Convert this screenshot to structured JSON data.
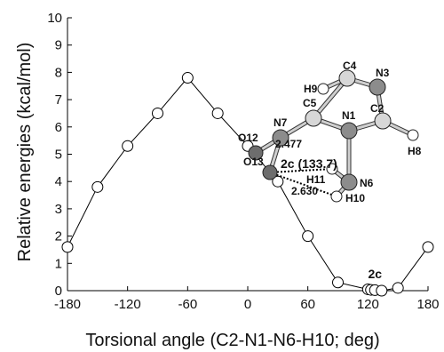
{
  "chart_data": {
    "type": "line",
    "xlabel": "Torsional angle (C2-N1-N6-H10; deg)",
    "ylabel": "Relative energies (kcal/mol)",
    "xlim": [
      -180,
      180
    ],
    "ylim": [
      0,
      10
    ],
    "x_ticks": [
      "-180",
      "-120",
      "-60",
      "0",
      "60",
      "120",
      "180"
    ],
    "x_tick_values": [
      -180,
      -120,
      -60,
      0,
      60,
      120,
      180
    ],
    "y_ticks": [
      "0",
      "1",
      "2",
      "3",
      "4",
      "5",
      "6",
      "7",
      "8",
      "9",
      "10"
    ],
    "y_tick_values": [
      0,
      1,
      2,
      3,
      4,
      5,
      6,
      7,
      8,
      9,
      10
    ],
    "series": [
      {
        "x": [
          -180,
          -150,
          -120,
          -90,
          -60,
          -30,
          0,
          30,
          60,
          90,
          120,
          123,
          127,
          133.7,
          150,
          180
        ],
        "y": [
          1.6,
          3.8,
          5.3,
          6.5,
          7.8,
          6.5,
          5.3,
          4.0,
          2.0,
          0.3,
          0.05,
          0.03,
          0.02,
          0.0,
          0.1,
          1.6
        ]
      }
    ],
    "annotations": {
      "minimum_label": "2c",
      "molecule_caption": "2c (133.7)",
      "atoms": [
        "H9",
        "C4",
        "N3",
        "C5",
        "C2",
        "O12",
        "N7",
        "N1",
        "H8",
        "O13",
        "H11",
        "N6",
        "H10"
      ],
      "distances": [
        "2.630",
        "2.477"
      ]
    },
    "colors": {
      "line": "#000000",
      "marker_fill": "#ffffff",
      "marker_stroke": "#000000"
    }
  }
}
